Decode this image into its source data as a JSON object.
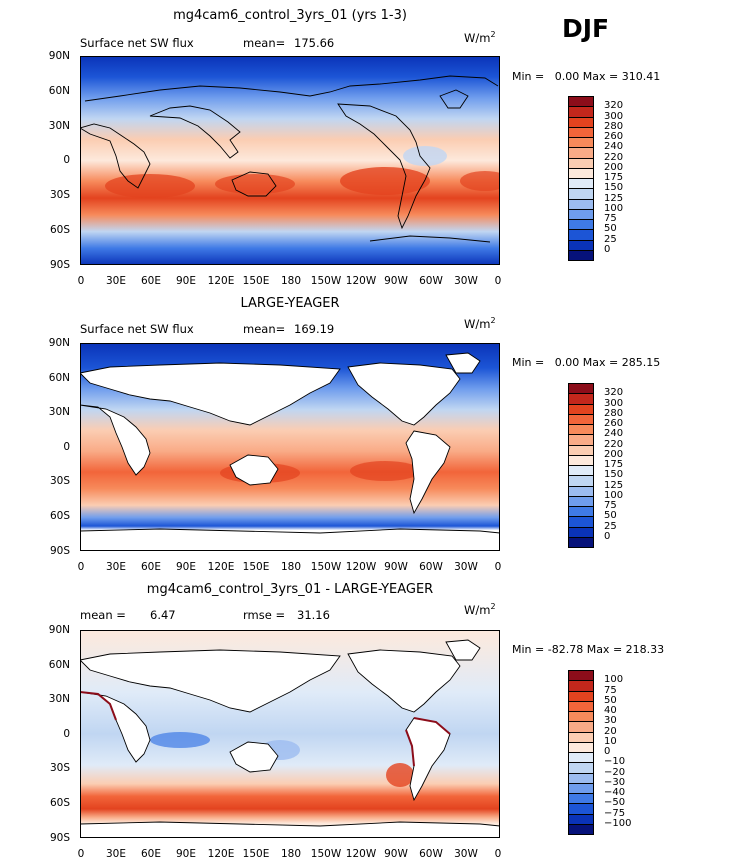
{
  "season": "DJF",
  "lat_labels": [
    "90N",
    "60N",
    "30N",
    "0",
    "30S",
    "60S",
    "90S"
  ],
  "lon_labels": [
    "0",
    "30E",
    "60E",
    "90E",
    "120E",
    "150E",
    "180",
    "150W",
    "120W",
    "90W",
    "60W",
    "30W",
    "0"
  ],
  "units_main": "W/m",
  "units_sup": "2",
  "panels": [
    {
      "title": "mg4cam6_control_3yrs_01 (yrs 1-3)",
      "variable": "Surface net SW flux",
      "stat_label": "mean=",
      "stat_value": "175.66",
      "min_label": "Min =",
      "min_value": "0.00",
      "max_label": "Max =",
      "max_value": "310.41",
      "colorbar_levels": [
        "320",
        "300",
        "280",
        "260",
        "240",
        "220",
        "200",
        "175",
        "150",
        "125",
        "100",
        "75",
        "50",
        "25",
        "0"
      ],
      "colorbar_colors": [
        "#8c0d1a",
        "#c3271c",
        "#e3431f",
        "#f2653a",
        "#f78a5b",
        "#f9ab87",
        "#fbcdb2",
        "#fde9dc",
        "#e0ebf8",
        "#c0d6f2",
        "#9cbcf0",
        "#6f9ded",
        "#3f7ae6",
        "#1c55d6",
        "#0a33b8",
        "#06127a"
      ]
    },
    {
      "title": "LARGE-YEAGER",
      "variable": "Surface net SW flux",
      "stat_label": "mean=",
      "stat_value": "169.19",
      "min_label": "Min =",
      "min_value": "0.00",
      "max_label": "Max =",
      "max_value": "285.15",
      "colorbar_levels": [
        "320",
        "300",
        "280",
        "260",
        "240",
        "220",
        "200",
        "175",
        "150",
        "125",
        "100",
        "75",
        "50",
        "25",
        "0"
      ],
      "colorbar_colors": [
        "#8c0d1a",
        "#c3271c",
        "#e3431f",
        "#f2653a",
        "#f78a5b",
        "#f9ab87",
        "#fbcdb2",
        "#fde9dc",
        "#e0ebf8",
        "#c0d6f2",
        "#9cbcf0",
        "#6f9ded",
        "#3f7ae6",
        "#1c55d6",
        "#0a33b8",
        "#06127a"
      ]
    },
    {
      "title": "mg4cam6_control_3yrs_01 - LARGE-YEAGER",
      "variable": "mean =",
      "variable_value": "6.47",
      "stat_label": "rmse =",
      "stat_value": "31.16",
      "min_label": "Min =",
      "min_value": "-82.78",
      "max_label": "Max =",
      "max_value": "218.33",
      "colorbar_levels": [
        "100",
        "75",
        "50",
        "40",
        "30",
        "20",
        "10",
        "0",
        "−10",
        "−20",
        "−30",
        "−40",
        "−50",
        "−75",
        "−100"
      ],
      "colorbar_colors": [
        "#8c0d1a",
        "#c3271c",
        "#e3431f",
        "#f2653a",
        "#f78a5b",
        "#f9ab87",
        "#fbcdb2",
        "#fde9dc",
        "#e0ebf8",
        "#c0d6f2",
        "#9cbcf0",
        "#6f9ded",
        "#3f7ae6",
        "#1c55d6",
        "#0a33b8",
        "#06127a"
      ]
    }
  ]
}
